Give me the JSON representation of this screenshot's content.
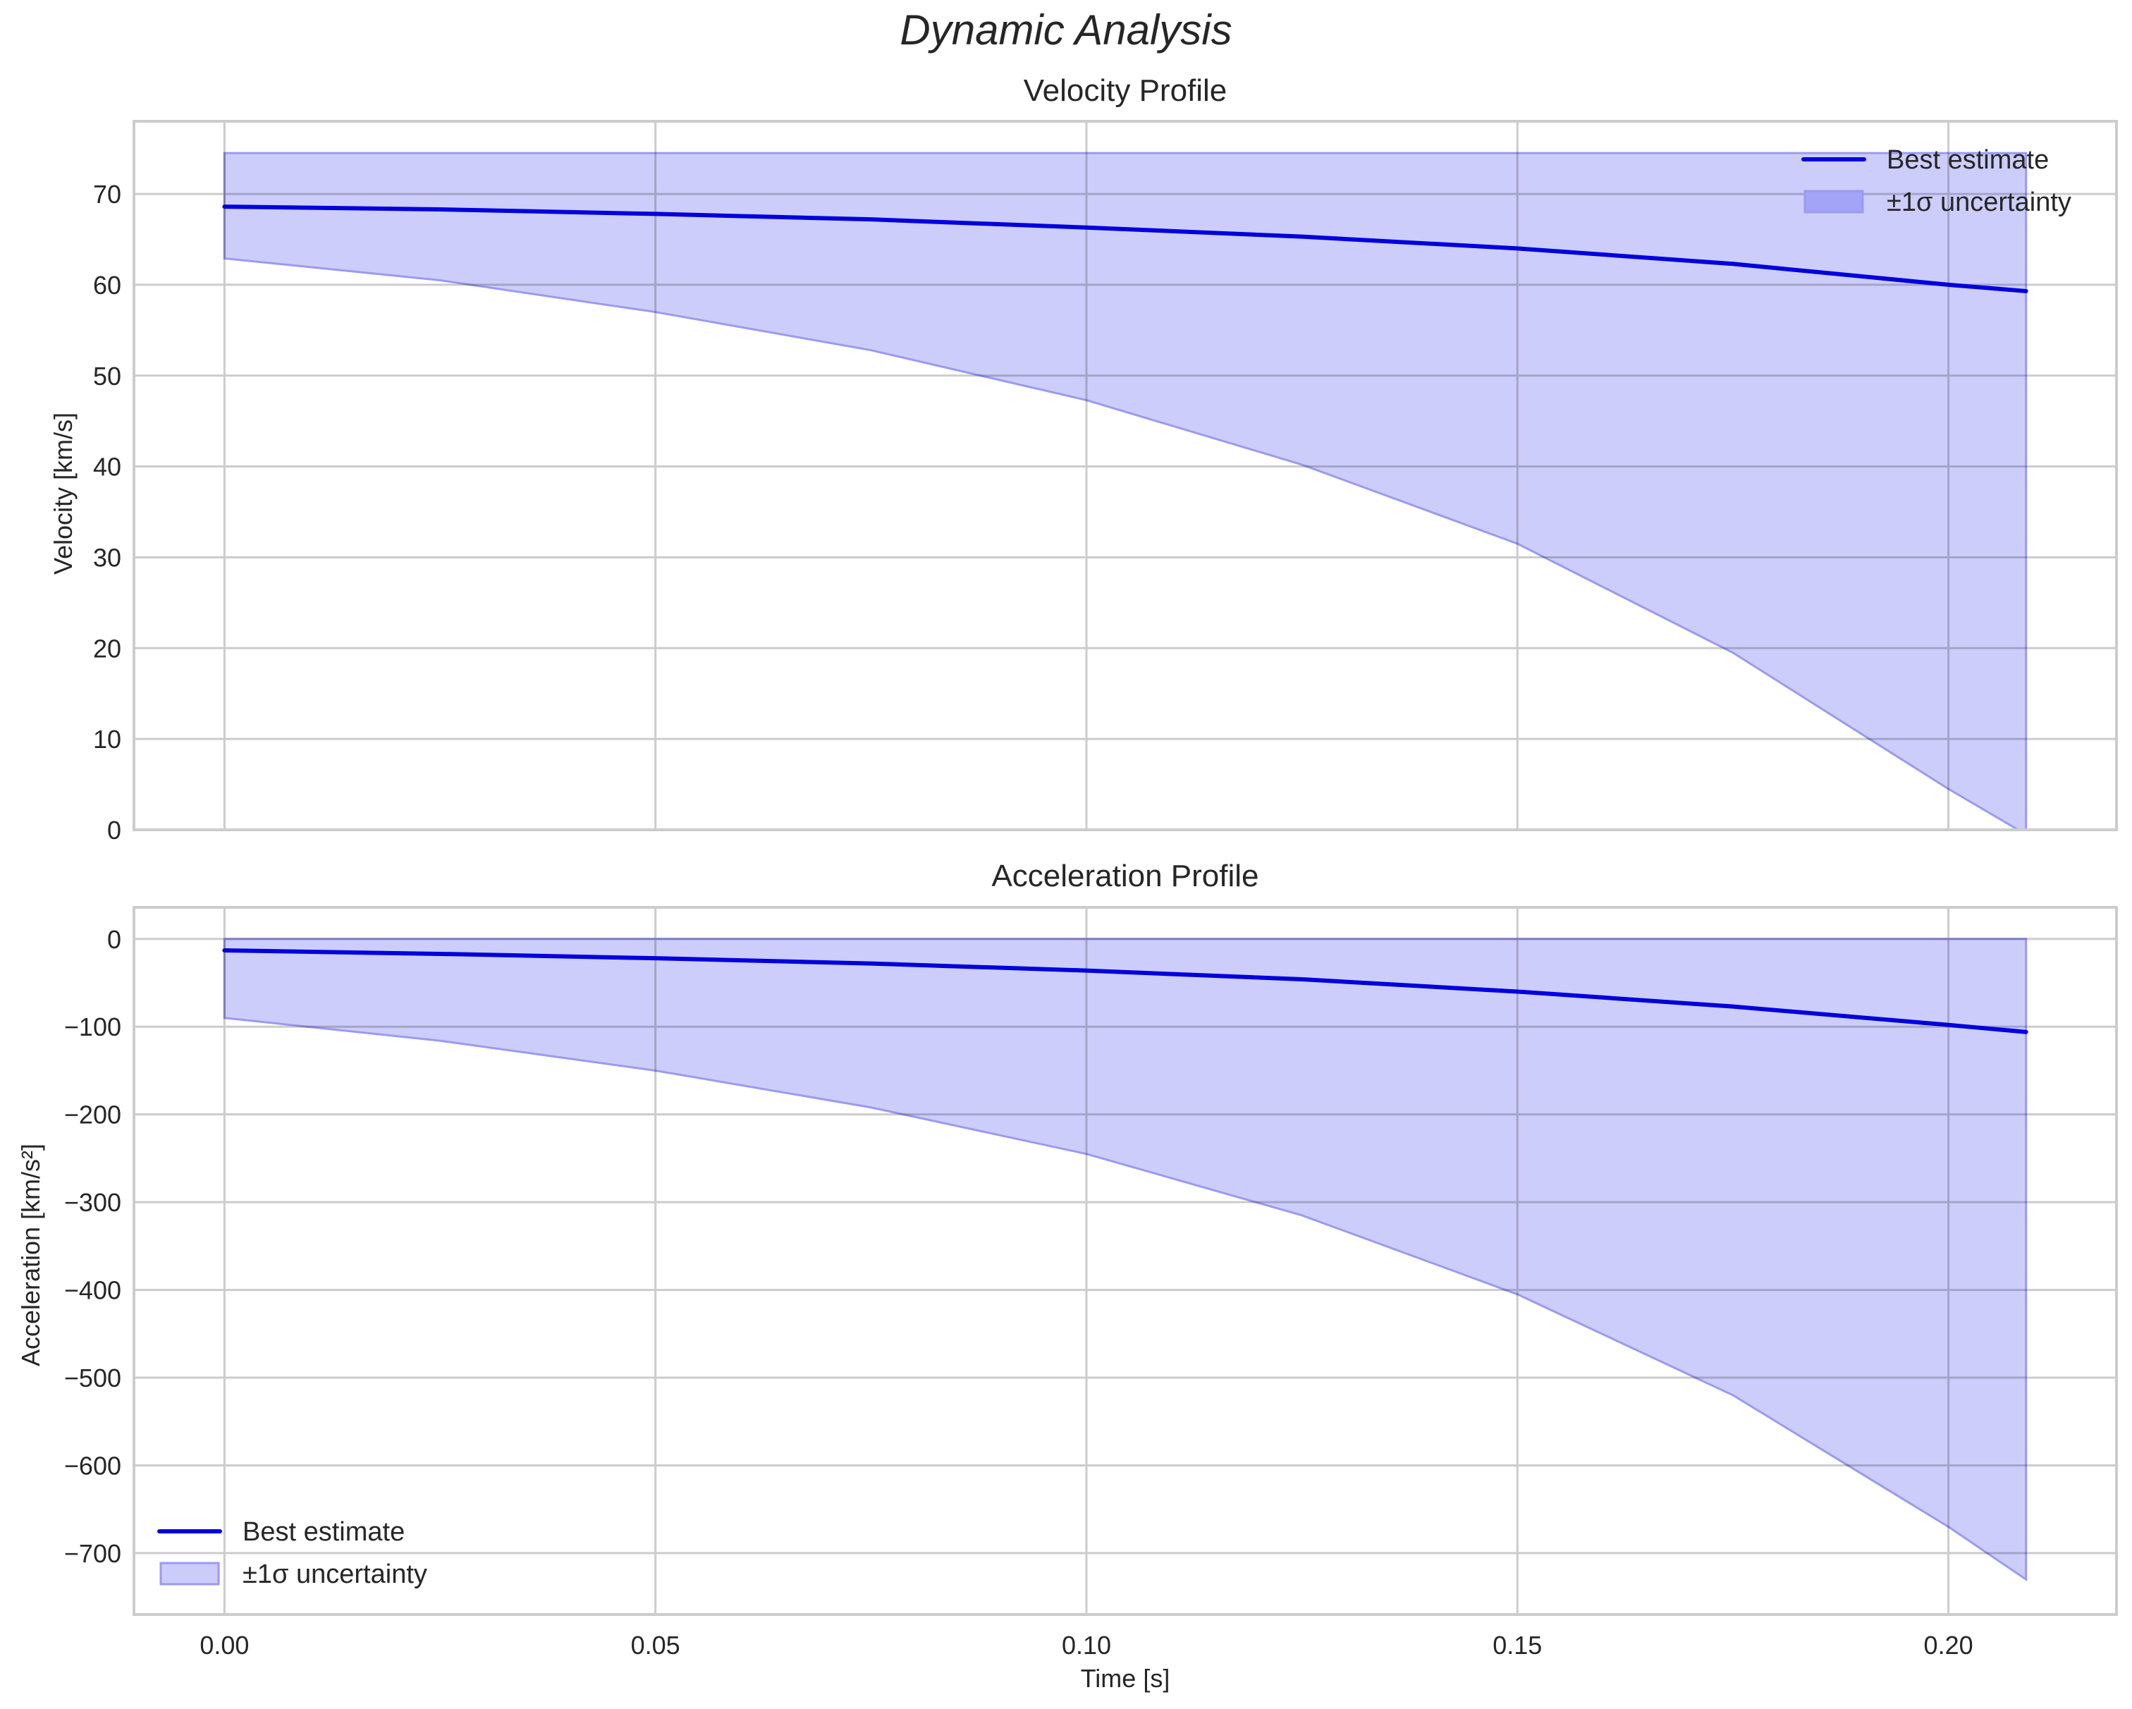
{
  "figure": {
    "title": "Dynamic Analysis",
    "xlabel": "Time [s]",
    "x_ticks": [
      "0.00",
      "0.05",
      "0.10",
      "0.15",
      "0.20"
    ]
  },
  "colors": {
    "line": "#0000dd",
    "band_fill": "#ccccfb",
    "band_edge": "#9a9af2",
    "grid": "#cccccc",
    "text": "#262626"
  },
  "legend": {
    "line_label": "Best estimate",
    "band_label": "±1σ uncertainty"
  },
  "chart_data": [
    {
      "type": "line",
      "title": "Velocity Profile",
      "xlabel": "",
      "ylabel": "Velocity [km/s]",
      "xlim": [
        -0.0105,
        0.2195
      ],
      "ylim": [
        0,
        78
      ],
      "y_ticks": [
        "0",
        "10",
        "20",
        "30",
        "40",
        "50",
        "60",
        "70"
      ],
      "grid": true,
      "legend_position": "upper right",
      "x": [
        0.0,
        0.025,
        0.05,
        0.075,
        0.1,
        0.125,
        0.15,
        0.175,
        0.2,
        0.209
      ],
      "series": [
        {
          "name": "Best estimate",
          "values": [
            68.6,
            68.3,
            67.8,
            67.2,
            66.3,
            65.3,
            64.0,
            62.3,
            60.0,
            59.3
          ]
        },
        {
          "name": "±1σ uncertainty (upper)",
          "values": [
            74.5,
            74.5,
            74.5,
            74.5,
            74.5,
            74.5,
            74.5,
            74.5,
            74.5,
            74.5
          ]
        },
        {
          "name": "±1σ uncertainty (lower)",
          "values": [
            62.9,
            60.5,
            57.0,
            52.8,
            47.3,
            40.2,
            31.5,
            19.5,
            4.5,
            -0.5
          ]
        }
      ]
    },
    {
      "type": "line",
      "title": "Acceleration Profile",
      "xlabel": "Time [s]",
      "ylabel": "Acceleration [km/s²]",
      "xlim": [
        -0.0105,
        0.2195
      ],
      "ylim": [
        -770,
        36
      ],
      "y_ticks": [
        "0",
        "−100",
        "−200",
        "−300",
        "−400",
        "−500",
        "−600",
        "−700"
      ],
      "grid": true,
      "legend_position": "lower left",
      "x": [
        0.0,
        0.025,
        0.05,
        0.075,
        0.1,
        0.125,
        0.15,
        0.175,
        0.2,
        0.209
      ],
      "series": [
        {
          "name": "Best estimate",
          "values": [
            -13,
            -17,
            -22,
            -28,
            -36,
            -46,
            -60,
            -77,
            -98,
            -106
          ]
        },
        {
          "name": "±1σ uncertainty (upper)",
          "values": [
            0,
            0,
            0,
            0,
            0,
            0,
            0,
            0,
            0,
            0
          ]
        },
        {
          "name": "±1σ uncertainty (lower)",
          "values": [
            -90,
            -116,
            -150,
            -192,
            -245,
            -315,
            -405,
            -520,
            -670,
            -730
          ]
        }
      ]
    }
  ]
}
